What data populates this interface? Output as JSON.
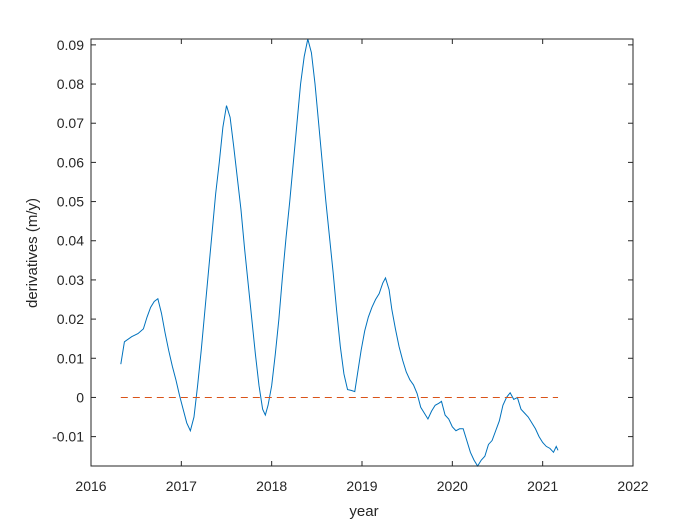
{
  "chart_data": {
    "type": "line",
    "title": "",
    "xlabel": "year",
    "ylabel": "derivatives (m/y)",
    "xlim": [
      2016,
      2022
    ],
    "ylim": [
      -0.0175,
      0.0915
    ],
    "x_ticks": [
      2016,
      2017,
      2018,
      2019,
      2020,
      2021,
      2022
    ],
    "x_tick_labels": [
      "2016",
      "2017",
      "2018",
      "2019",
      "2020",
      "2021",
      "2022"
    ],
    "y_ticks": [
      -0.01,
      0,
      0.01,
      0.02,
      0.03,
      0.04,
      0.05,
      0.06,
      0.07,
      0.08,
      0.09
    ],
    "y_tick_labels": [
      "-0.01",
      "0",
      "0.01",
      "0.02",
      "0.03",
      "0.04",
      "0.05",
      "0.06",
      "0.07",
      "0.08",
      "0.09"
    ],
    "grid": false,
    "series": [
      {
        "style": "solid",
        "color": "#0072BD",
        "points": [
          [
            2016.33,
            0.0085
          ],
          [
            2016.37,
            0.0142
          ],
          [
            2016.45,
            0.0155
          ],
          [
            2016.52,
            0.0163
          ],
          [
            2016.58,
            0.0175
          ],
          [
            2016.62,
            0.0205
          ],
          [
            2016.66,
            0.023
          ],
          [
            2016.7,
            0.0245
          ],
          [
            2016.74,
            0.0252
          ],
          [
            2016.78,
            0.0215
          ],
          [
            2016.82,
            0.0165
          ],
          [
            2016.86,
            0.012
          ],
          [
            2016.9,
            0.008
          ],
          [
            2016.94,
            0.0045
          ],
          [
            2016.98,
            0.0005
          ],
          [
            2017.02,
            -0.003
          ],
          [
            2017.06,
            -0.0065
          ],
          [
            2017.1,
            -0.0085
          ],
          [
            2017.14,
            -0.005
          ],
          [
            2017.18,
            0.003
          ],
          [
            2017.22,
            0.012
          ],
          [
            2017.26,
            0.022
          ],
          [
            2017.3,
            0.032
          ],
          [
            2017.34,
            0.042
          ],
          [
            2017.38,
            0.052
          ],
          [
            2017.42,
            0.06
          ],
          [
            2017.46,
            0.069
          ],
          [
            2017.5,
            0.0745
          ],
          [
            2017.54,
            0.0715
          ],
          [
            2017.58,
            0.064
          ],
          [
            2017.62,
            0.056
          ],
          [
            2017.66,
            0.048
          ],
          [
            2017.7,
            0.038
          ],
          [
            2017.74,
            0.029
          ],
          [
            2017.78,
            0.02
          ],
          [
            2017.82,
            0.011
          ],
          [
            2017.86,
            0.003
          ],
          [
            2017.9,
            -0.003
          ],
          [
            2017.93,
            -0.0045
          ],
          [
            2017.96,
            -0.002
          ],
          [
            2018.0,
            0.003
          ],
          [
            2018.04,
            0.011
          ],
          [
            2018.08,
            0.02
          ],
          [
            2018.12,
            0.031
          ],
          [
            2018.16,
            0.041
          ],
          [
            2018.2,
            0.05
          ],
          [
            2018.24,
            0.06
          ],
          [
            2018.28,
            0.07
          ],
          [
            2018.32,
            0.08
          ],
          [
            2018.36,
            0.087
          ],
          [
            2018.4,
            0.0915
          ],
          [
            2018.44,
            0.088
          ],
          [
            2018.48,
            0.08
          ],
          [
            2018.52,
            0.07
          ],
          [
            2018.56,
            0.06
          ],
          [
            2018.6,
            0.05
          ],
          [
            2018.64,
            0.041
          ],
          [
            2018.68,
            0.032
          ],
          [
            2018.72,
            0.022
          ],
          [
            2018.76,
            0.013
          ],
          [
            2018.8,
            0.006
          ],
          [
            2018.84,
            0.002
          ],
          [
            2018.88,
            0.0018
          ],
          [
            2018.92,
            0.0015
          ],
          [
            2018.95,
            0.006
          ],
          [
            2018.99,
            0.012
          ],
          [
            2019.03,
            0.017
          ],
          [
            2019.07,
            0.0205
          ],
          [
            2019.11,
            0.023
          ],
          [
            2019.15,
            0.025
          ],
          [
            2019.19,
            0.0265
          ],
          [
            2019.23,
            0.0292
          ],
          [
            2019.26,
            0.0305
          ],
          [
            2019.3,
            0.0275
          ],
          [
            2019.33,
            0.0225
          ],
          [
            2019.37,
            0.0175
          ],
          [
            2019.41,
            0.013
          ],
          [
            2019.45,
            0.0095
          ],
          [
            2019.49,
            0.0065
          ],
          [
            2019.53,
            0.0045
          ],
          [
            2019.57,
            0.0032
          ],
          [
            2019.61,
            0.001
          ],
          [
            2019.65,
            -0.0025
          ],
          [
            2019.69,
            -0.004
          ],
          [
            2019.73,
            -0.0055
          ],
          [
            2019.77,
            -0.0035
          ],
          [
            2019.81,
            -0.002
          ],
          [
            2019.85,
            -0.0015
          ],
          [
            2019.88,
            -0.001
          ],
          [
            2019.92,
            -0.0045
          ],
          [
            2019.96,
            -0.0055
          ],
          [
            2020.0,
            -0.0075
          ],
          [
            2020.04,
            -0.0085
          ],
          [
            2020.08,
            -0.008
          ],
          [
            2020.12,
            -0.008
          ],
          [
            2020.16,
            -0.011
          ],
          [
            2020.2,
            -0.014
          ],
          [
            2020.24,
            -0.016
          ],
          [
            2020.28,
            -0.0175
          ],
          [
            2020.32,
            -0.016
          ],
          [
            2020.36,
            -0.015
          ],
          [
            2020.4,
            -0.012
          ],
          [
            2020.44,
            -0.011
          ],
          [
            2020.48,
            -0.0085
          ],
          [
            2020.52,
            -0.006
          ],
          [
            2020.56,
            -0.002
          ],
          [
            2020.6,
            0.0
          ],
          [
            2020.64,
            0.0012
          ],
          [
            2020.68,
            -0.0005
          ],
          [
            2020.72,
            0.0
          ],
          [
            2020.76,
            -0.003
          ],
          [
            2020.8,
            -0.004
          ],
          [
            2020.84,
            -0.005
          ],
          [
            2020.88,
            -0.0065
          ],
          [
            2020.92,
            -0.008
          ],
          [
            2020.96,
            -0.01
          ],
          [
            2021.0,
            -0.0115
          ],
          [
            2021.04,
            -0.0125
          ],
          [
            2021.08,
            -0.013
          ],
          [
            2021.12,
            -0.014
          ],
          [
            2021.15,
            -0.0125
          ],
          [
            2021.17,
            -0.0135
          ]
        ]
      },
      {
        "style": "dashed",
        "color": "#D95319",
        "points": [
          [
            2016.33,
            0
          ],
          [
            2021.17,
            0
          ]
        ]
      }
    ]
  }
}
